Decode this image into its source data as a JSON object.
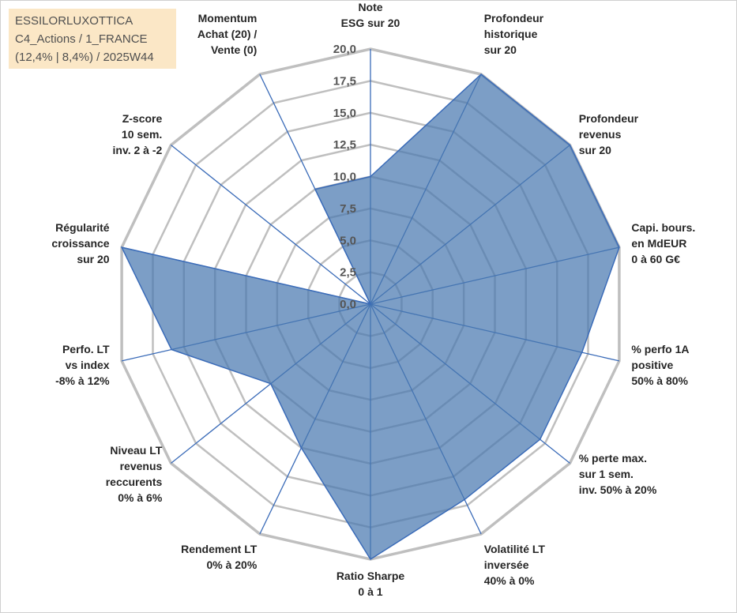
{
  "header": {
    "lines": [
      "ESSILORLUXOTTICA",
      "C4_Actions / 1_FRANCE",
      "(12,4% | 8,4%) / 2025W44"
    ]
  },
  "colors": {
    "fill": "#4a78b0",
    "line": "#3a6bb8",
    "grid": "#bfbfbf",
    "title_bg": "#fbe7c6"
  },
  "chart_data": {
    "type": "radar",
    "title": "ESSILORLUXOTTICA",
    "rmax": 20,
    "ticks": [
      "0,0",
      "2,5",
      "5,0",
      "7,5",
      "10,0",
      "12,5",
      "15,0",
      "17,5",
      "20,0"
    ],
    "tick_values": [
      0,
      2.5,
      5,
      7.5,
      10,
      12.5,
      15,
      17.5,
      20
    ],
    "axes": [
      {
        "label": [
          "Note",
          "ESG sur 20"
        ],
        "value": 10
      },
      {
        "label": [
          "Profondeur",
          "historique",
          "sur 20"
        ],
        "value": 20
      },
      {
        "label": [
          "Profondeur",
          "revenus",
          "sur 20"
        ],
        "value": 20
      },
      {
        "label": [
          "Capi. bours.",
          "en MdEUR",
          "0 à 60 G€"
        ],
        "value": 20
      },
      {
        "label": [
          "% perfo 1A",
          "positive",
          "50% à 80%"
        ],
        "value": 17
      },
      {
        "label": [
          "% perte max.",
          "sur 1 sem.",
          "inv. 50% à 20%"
        ],
        "value": 17
      },
      {
        "label": [
          "Volatilité LT",
          "inversée",
          "40% à 0%"
        ],
        "value": 17
      },
      {
        "label": [
          "Ratio Sharpe",
          "0 à 1"
        ],
        "value": 20
      },
      {
        "label": [
          "Rendement LT",
          "0% à 20%"
        ],
        "value": 12.5
      },
      {
        "label": [
          "Niveau LT",
          "revenus",
          "reccurents",
          "0% à 6%"
        ],
        "value": 10
      },
      {
        "label": [
          "Perfo. LT",
          "vs index",
          "-8% à 12%"
        ],
        "value": 16
      },
      {
        "label": [
          "Régularité",
          "croissance",
          "sur 20"
        ],
        "value": 20
      },
      {
        "label": [
          "Z-score",
          "10 sem.",
          "inv. 2 à -2"
        ],
        "value": 0
      },
      {
        "label": [
          "Momentum",
          "Achat (20) /",
          "Vente (0)"
        ],
        "value": 10
      }
    ]
  }
}
